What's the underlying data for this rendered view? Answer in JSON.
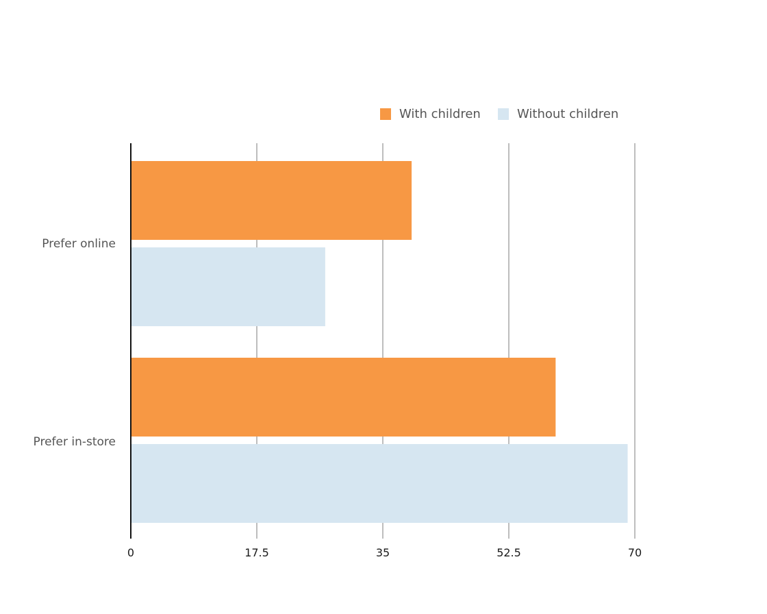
{
  "chart_data": {
    "type": "bar",
    "orientation": "horizontal",
    "title": "",
    "xlabel": "",
    "ylabel": "",
    "categories": [
      "Prefer online",
      "Prefer in-store"
    ],
    "series": [
      {
        "name": "With children",
        "values": [
          39,
          59
        ],
        "color": "#f79844"
      },
      {
        "name": "Without children",
        "values": [
          27,
          69
        ],
        "color": "#d6e6f1"
      }
    ],
    "xlim": [
      0,
      70
    ],
    "ticks": [
      "0",
      "17.5",
      "35",
      "52.5",
      "70"
    ],
    "grid": true,
    "legend_position": "top-right"
  }
}
